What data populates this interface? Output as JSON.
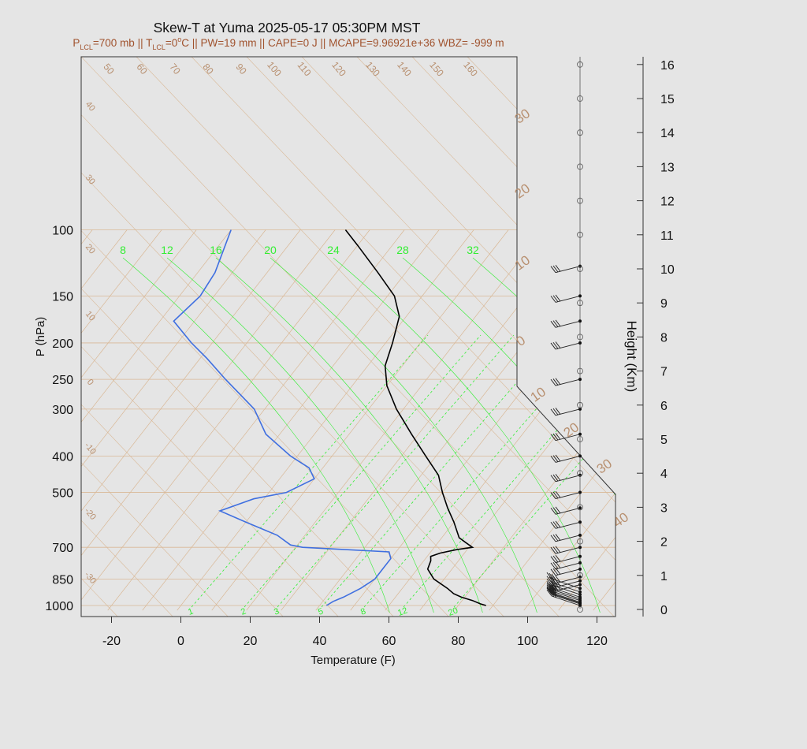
{
  "title": "Skew-T at Yuma 2025-05-17 05:30PM MST",
  "subtitle": {
    "p_lcl": "P",
    "p_lcl_sub": "LCL",
    "p_lcl_val": "=700 mb || T",
    "t_lcl_sub": "LCL",
    "t_lcl_val": "=0",
    "deg": "o",
    "rest": "C || PW=19 mm || CAPE=0 J || MCAPE=9.96921e+36 WBZ= -999 m"
  },
  "colors": {
    "background": "#e5e5e5",
    "temperature": "#000000",
    "dewpoint": "#3f6fe0",
    "isotherm": "#d9b896",
    "mixing_ratio": "#33ee33",
    "label_brown": "#b89070",
    "subtitle": "#a0522d"
  },
  "chart_data": {
    "type": "line",
    "title": "Skew-T at Yuma 2025-05-17 05:30PM MST",
    "xlabel": "Temperature (F)",
    "ylabel": "P (hPa)",
    "right_label": "Height (Km)",
    "xlim": [
      -28,
      125
    ],
    "ylim": [
      1030,
      100
    ],
    "x_ticks": [
      "-20",
      "0",
      "20",
      "40",
      "60",
      "80",
      "100",
      "120"
    ],
    "p_ticks": [
      "100",
      "150",
      "200",
      "250",
      "300",
      "400",
      "500",
      "700",
      "850",
      "1000"
    ],
    "height_ticks": [
      "0",
      "1",
      "2",
      "3",
      "4",
      "5",
      "6",
      "7",
      "8",
      "9",
      "10",
      "11",
      "12",
      "13",
      "14",
      "15",
      "16"
    ],
    "isotherm_labels": [
      "50",
      "60",
      "70",
      "80",
      "90",
      "100",
      "110",
      "120",
      "130",
      "140",
      "150",
      "160"
    ],
    "left_isotherm_labels": [
      "40",
      "30",
      "20",
      "10",
      "0",
      "-10",
      "-20",
      "-30"
    ],
    "right_isotherm_labels": [
      "30",
      "20",
      "10",
      "0",
      "10",
      "20",
      "30",
      "40"
    ],
    "theta_e_labels": [
      "8",
      "12",
      "16",
      "20",
      "24",
      "28",
      "32"
    ],
    "mixing_labels": [
      "1",
      "2",
      "3",
      "5",
      "8",
      "12",
      "20"
    ],
    "series": [
      {
        "name": "Temperature",
        "points": [
          [
            1000,
            88
          ],
          [
            990,
            86
          ],
          [
            970,
            83
          ],
          [
            950,
            79
          ],
          [
            930,
            76
          ],
          [
            900,
            73
          ],
          [
            850,
            67
          ],
          [
            800,
            63
          ],
          [
            760,
            62
          ],
          [
            740,
            61
          ],
          [
            725,
            63
          ],
          [
            710,
            67
          ],
          [
            700,
            71
          ],
          [
            680,
            68
          ],
          [
            660,
            65
          ],
          [
            600,
            60
          ],
          [
            550,
            55
          ],
          [
            500,
            50
          ],
          [
            450,
            45
          ],
          [
            400,
            37
          ],
          [
            350,
            28
          ],
          [
            300,
            18
          ],
          [
            260,
            10
          ],
          [
            230,
            5
          ],
          [
            200,
            2
          ],
          [
            170,
            -2
          ],
          [
            150,
            -8
          ],
          [
            130,
            -18
          ],
          [
            110,
            -30
          ],
          [
            100,
            -37
          ]
        ]
      },
      {
        "name": "Dewpoint",
        "points": [
          [
            1000,
            42
          ],
          [
            975,
            43
          ],
          [
            950,
            45
          ],
          [
            900,
            48
          ],
          [
            850,
            50
          ],
          [
            800,
            50
          ],
          [
            750,
            50
          ],
          [
            720,
            48
          ],
          [
            700,
            22
          ],
          [
            690,
            18
          ],
          [
            650,
            12
          ],
          [
            600,
            0
          ],
          [
            560,
            -10
          ],
          [
            520,
            -3
          ],
          [
            500,
            5
          ],
          [
            460,
            10
          ],
          [
            430,
            6
          ],
          [
            400,
            -2
          ],
          [
            350,
            -14
          ],
          [
            300,
            -23
          ],
          [
            250,
            -38
          ],
          [
            220,
            -48
          ],
          [
            200,
            -56
          ],
          [
            175,
            -66
          ],
          [
            150,
            -64
          ],
          [
            130,
            -65
          ],
          [
            100,
            -70
          ]
        ]
      }
    ],
    "wind_barbs": [
      {
        "p": 1000,
        "km": 0.0
      },
      {
        "p": 990,
        "km": 0.1
      },
      {
        "p": 985,
        "km": 0.15
      },
      {
        "p": 980,
        "km": 0.2
      },
      {
        "p": 970,
        "km": 0.3
      },
      {
        "p": 960,
        "km": 0.4
      },
      {
        "p": 950,
        "km": 0.5
      },
      {
        "p": 935,
        "km": 0.65
      },
      {
        "p": 920,
        "km": 0.8
      },
      {
        "p": 900,
        "km": 1.0
      },
      {
        "p": 880,
        "km": 1.2
      },
      {
        "p": 860,
        "km": 1.35
      },
      {
        "p": 840,
        "km": 1.55
      },
      {
        "p": 800,
        "km": 2.0
      },
      {
        "p": 770,
        "km": 2.4
      },
      {
        "p": 740,
        "km": 2.7
      },
      {
        "p": 700,
        "km": 3.0
      },
      {
        "p": 650,
        "km": 3.6
      },
      {
        "p": 600,
        "km": 4.3
      },
      {
        "p": 550,
        "km": 5.0
      },
      {
        "p": 500,
        "km": 5.7
      },
      {
        "p": 450,
        "km": 6.4
      },
      {
        "p": 400,
        "km": 7.2
      },
      {
        "p": 350,
        "km": 8.1
      },
      {
        "p": 300,
        "km": 9.2
      },
      {
        "p": 250,
        "km": 10.4
      },
      {
        "p": 200,
        "km": 11.8
      },
      {
        "p": 175,
        "km": 12.8
      },
      {
        "p": 150,
        "km": 13.6
      },
      {
        "p": 125,
        "km": 14.5
      }
    ]
  }
}
